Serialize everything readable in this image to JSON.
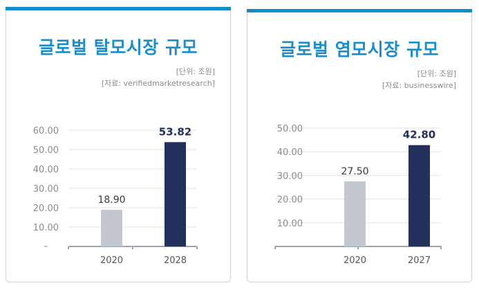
{
  "colors": {
    "accent": "#0f8ccc",
    "bar_old": "#c3c8ce",
    "bar_new": "#23305c",
    "title": "#1a8ecb"
  },
  "charts": [
    {
      "title": "글로벌 탈모시장 규모",
      "unit": "[단위: 조원]",
      "source": "[자료: verifiedmarketresearch]"
    },
    {
      "title": "글로벌 염모시장 규모",
      "unit": "[단위: 조원]",
      "source": "[자료: businesswire]"
    }
  ],
  "chart_data": [
    {
      "type": "bar",
      "title": "글로벌 탈모시장 규모",
      "categories": [
        "2020",
        "2028"
      ],
      "values": [
        18.9,
        53.82
      ],
      "value_labels": [
        "18.90",
        "53.82"
      ],
      "yticks": [
        "-",
        "10.00",
        "20.00",
        "30.00",
        "40.00",
        "50.00",
        "60.00"
      ],
      "ylim": [
        0,
        60
      ],
      "grid": true
    },
    {
      "type": "bar",
      "title": "글로벌 염모시장 규모",
      "categories": [
        "2020",
        "2027"
      ],
      "values": [
        27.5,
        42.8
      ],
      "value_labels": [
        "27.50",
        "42.80"
      ],
      "yticks": [
        "-",
        "10.00",
        "20.00",
        "30.00",
        "40.00",
        "50.00"
      ],
      "ylim": [
        0,
        50
      ],
      "grid": true
    }
  ]
}
